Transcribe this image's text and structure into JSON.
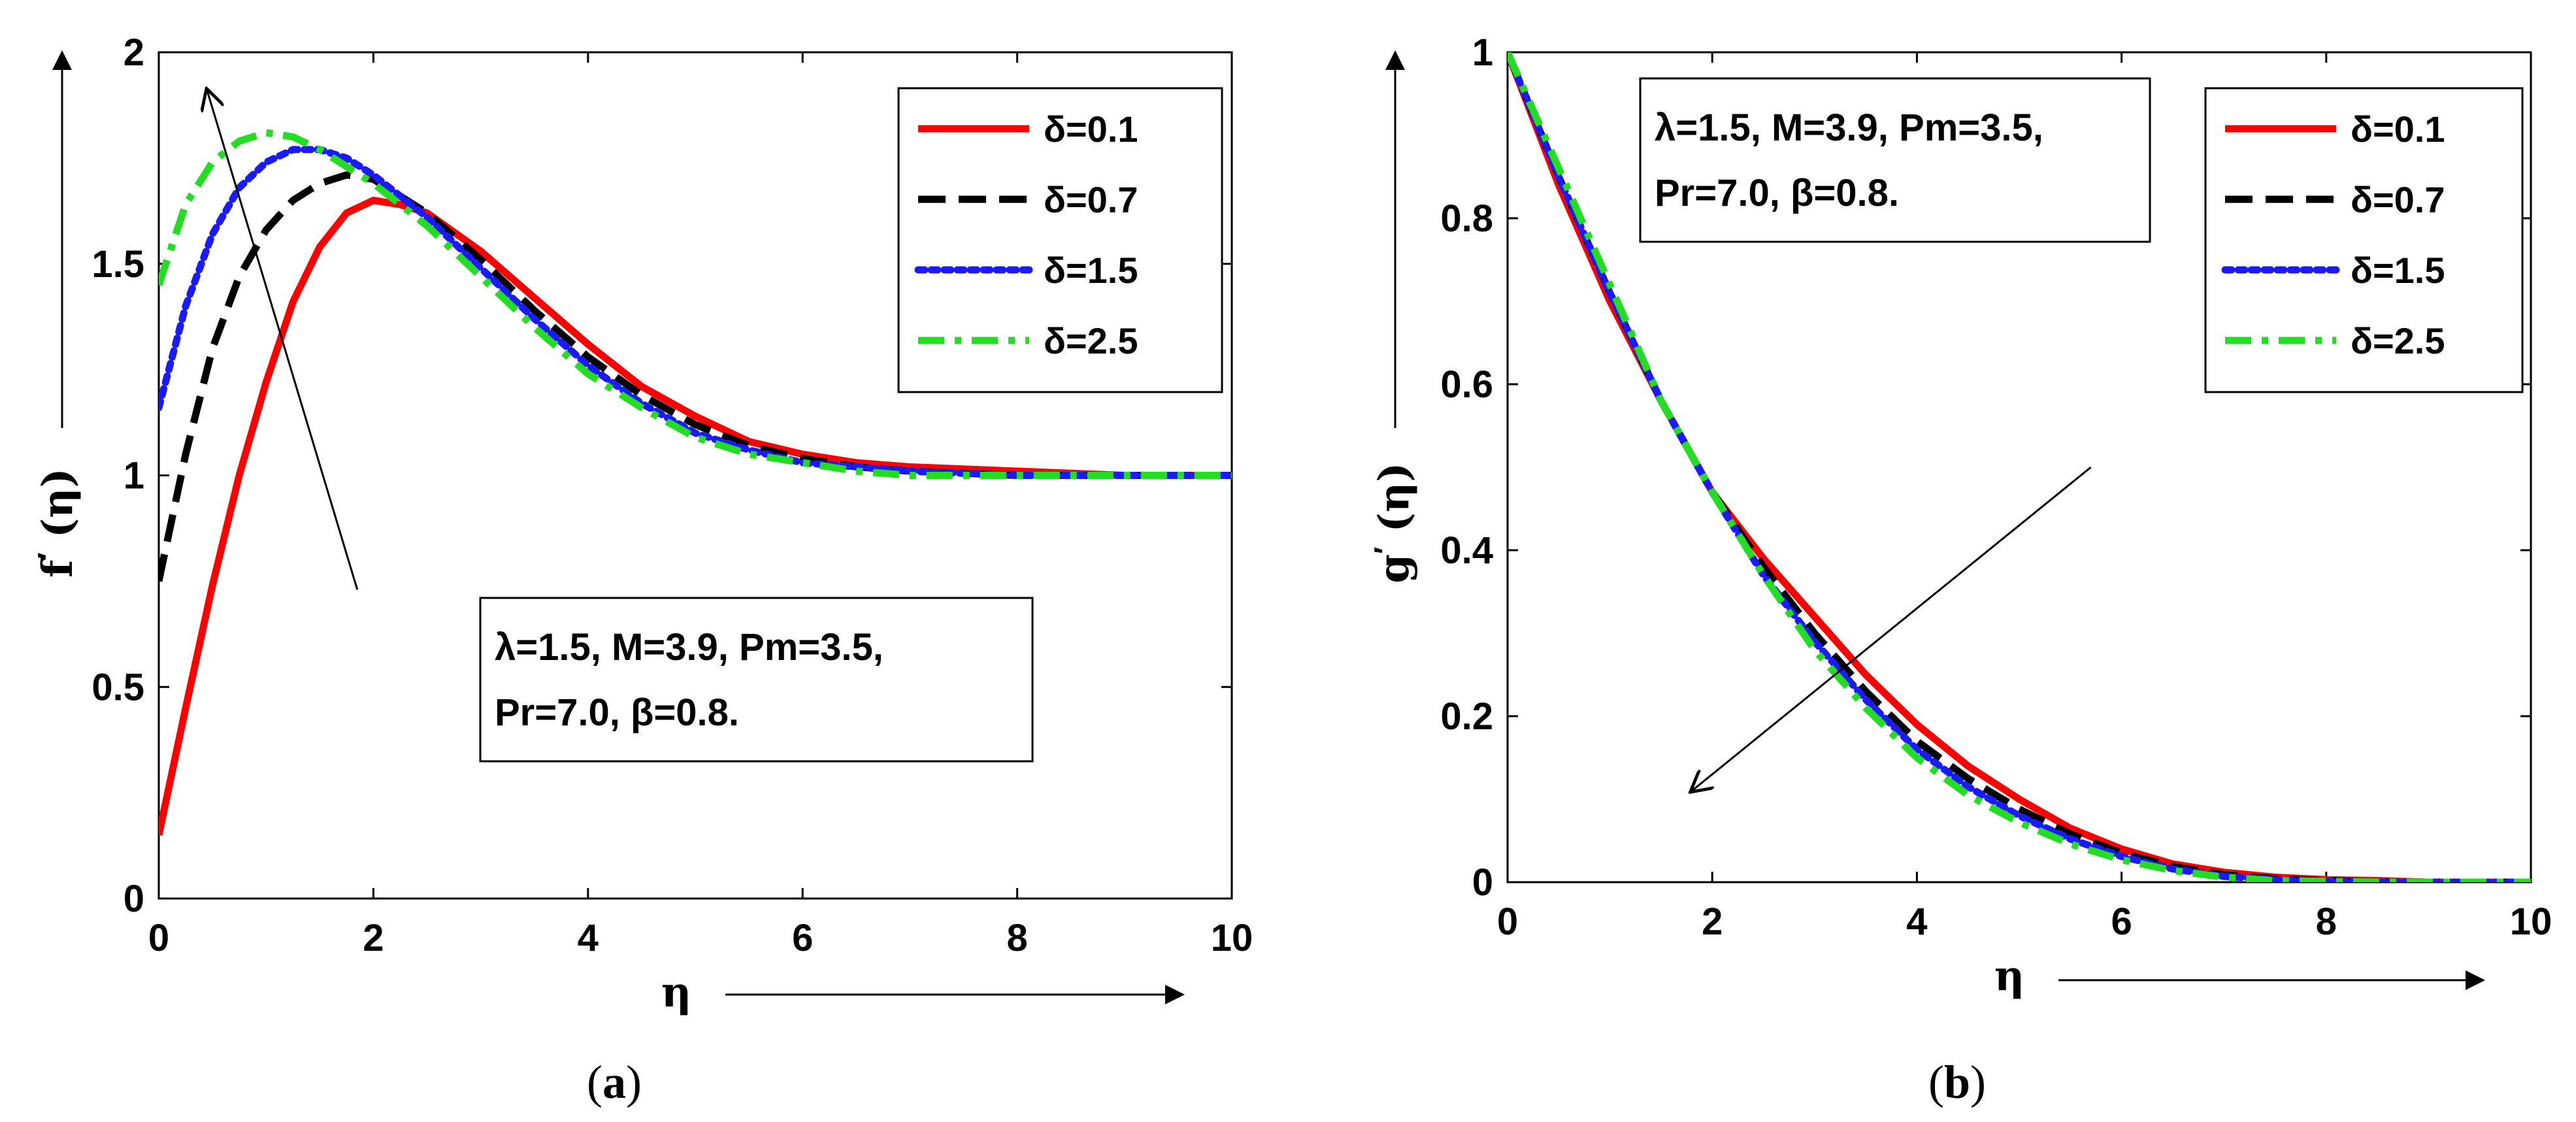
{
  "chart_data": [
    {
      "type": "line",
      "panel_label": "a",
      "ylabel": "f",
      "ylabel_prime": "′",
      "ylabel_arg": "(η)",
      "xlabel": "η",
      "xlim": [
        0,
        10
      ],
      "ylim": [
        0,
        2
      ],
      "xticks": [
        "0",
        "2",
        "4",
        "6",
        "8",
        "10"
      ],
      "yticks": [
        "0",
        "0.5",
        "1",
        "1.5",
        "2"
      ],
      "annotation": [
        "λ=1.5, M=3.9, Pm=3.5,",
        "Pr=7.0, β=0.8."
      ],
      "legend_position": "top-right",
      "trend_arrow": {
        "from": [
          1.85,
          0.73
        ],
        "to": [
          0.45,
          1.91
        ]
      },
      "series": [
        {
          "name": "δ=0.1",
          "color": "#ff0000",
          "dash": "solid",
          "x": [
            0,
            0.25,
            0.5,
            0.75,
            1,
            1.25,
            1.5,
            1.75,
            2,
            2.25,
            2.5,
            3,
            3.5,
            4,
            4.5,
            5,
            5.5,
            6,
            6.5,
            7,
            8,
            9,
            10
          ],
          "y": [
            0.15,
            0.45,
            0.74,
            1.0,
            1.22,
            1.41,
            1.54,
            1.62,
            1.65,
            1.64,
            1.62,
            1.53,
            1.42,
            1.31,
            1.21,
            1.14,
            1.08,
            1.05,
            1.03,
            1.02,
            1.01,
            1.0,
            1.0
          ]
        },
        {
          "name": "δ=0.7",
          "color": "#000000",
          "dash": "dashed",
          "x": [
            0,
            0.25,
            0.5,
            0.75,
            1,
            1.25,
            1.5,
            1.75,
            2,
            2.25,
            2.5,
            3,
            3.5,
            4,
            4.5,
            5,
            5.5,
            6,
            6.5,
            7,
            8,
            9,
            10
          ],
          "y": [
            0.75,
            1.05,
            1.3,
            1.47,
            1.58,
            1.65,
            1.69,
            1.71,
            1.7,
            1.66,
            1.62,
            1.51,
            1.39,
            1.28,
            1.19,
            1.12,
            1.07,
            1.04,
            1.02,
            1.01,
            1.0,
            1.0,
            1.0
          ]
        },
        {
          "name": "δ=1.5",
          "color": "#1a1aff",
          "dash": "dotted",
          "x": [
            0,
            0.25,
            0.5,
            0.75,
            1,
            1.25,
            1.5,
            1.75,
            2,
            2.25,
            2.5,
            3,
            3.5,
            4,
            4.5,
            5,
            5.5,
            6,
            6.5,
            7,
            8,
            9,
            10
          ],
          "y": [
            1.16,
            1.4,
            1.57,
            1.68,
            1.74,
            1.77,
            1.77,
            1.75,
            1.71,
            1.66,
            1.61,
            1.49,
            1.37,
            1.26,
            1.17,
            1.1,
            1.06,
            1.03,
            1.02,
            1.01,
            1.0,
            1.0,
            1.0
          ]
        },
        {
          "name": "δ=2.5",
          "color": "#22dd22",
          "dash": "dashdot",
          "x": [
            0,
            0.25,
            0.5,
            0.75,
            1,
            1.25,
            1.5,
            1.75,
            2,
            2.25,
            2.5,
            3,
            3.5,
            4,
            4.5,
            5,
            5.5,
            6,
            6.5,
            7,
            8,
            9,
            10
          ],
          "y": [
            1.45,
            1.64,
            1.74,
            1.79,
            1.81,
            1.8,
            1.77,
            1.73,
            1.69,
            1.64,
            1.59,
            1.47,
            1.35,
            1.24,
            1.16,
            1.09,
            1.05,
            1.03,
            1.01,
            1.0,
            1.0,
            1.0,
            1.0
          ]
        }
      ]
    },
    {
      "type": "line",
      "panel_label": "b",
      "ylabel": "g",
      "ylabel_prime": "′",
      "ylabel_arg": "(η)",
      "xlabel": "η",
      "xlim": [
        0,
        10
      ],
      "ylim": [
        0,
        1
      ],
      "xticks": [
        "0",
        "2",
        "4",
        "6",
        "8",
        "10"
      ],
      "yticks": [
        "0",
        "0.2",
        "0.4",
        "0.6",
        "0.8",
        "1"
      ],
      "annotation": [
        "λ=1.5, M=3.9, Pm=3.5,",
        "Pr=7.0, β=0.8."
      ],
      "legend_position": "top-right",
      "trend_arrow": {
        "from": [
          5.7,
          0.5
        ],
        "to": [
          1.8,
          0.11
        ]
      },
      "series": [
        {
          "name": "δ=0.1",
          "color": "#ff0000",
          "dash": "solid",
          "x": [
            0,
            0.5,
            1,
            1.5,
            2,
            2.5,
            3,
            3.5,
            4,
            4.5,
            5,
            5.5,
            6,
            6.5,
            7,
            7.5,
            8,
            8.5,
            9,
            10
          ],
          "y": [
            1.0,
            0.84,
            0.7,
            0.58,
            0.47,
            0.39,
            0.32,
            0.25,
            0.19,
            0.14,
            0.1,
            0.065,
            0.04,
            0.022,
            0.012,
            0.006,
            0.003,
            0.002,
            0.0,
            0.0
          ]
        },
        {
          "name": "δ=0.7",
          "color": "#000000",
          "dash": "dashed",
          "x": [
            0,
            0.5,
            1,
            1.5,
            2,
            2.5,
            3,
            3.5,
            4,
            4.5,
            5,
            5.5,
            6,
            6.5,
            7,
            7.5,
            8,
            8.5,
            9,
            10
          ],
          "y": [
            1.0,
            0.85,
            0.71,
            0.58,
            0.47,
            0.38,
            0.3,
            0.23,
            0.17,
            0.125,
            0.088,
            0.058,
            0.035,
            0.019,
            0.009,
            0.004,
            0.002,
            0.0,
            0.0,
            0.0
          ]
        },
        {
          "name": "δ=1.5",
          "color": "#1a1aff",
          "dash": "dotted",
          "x": [
            0,
            0.5,
            1,
            1.5,
            2,
            2.5,
            3,
            3.5,
            4,
            4.5,
            5,
            5.5,
            6,
            6.5,
            7,
            7.5,
            8,
            8.5,
            9,
            10
          ],
          "y": [
            1.0,
            0.85,
            0.71,
            0.58,
            0.47,
            0.37,
            0.29,
            0.22,
            0.16,
            0.115,
            0.08,
            0.052,
            0.031,
            0.016,
            0.007,
            0.003,
            0.001,
            0.0,
            0.0,
            0.0
          ]
        },
        {
          "name": "δ=2.5",
          "color": "#22dd22",
          "dash": "dashdot",
          "x": [
            0,
            0.5,
            1,
            1.5,
            2,
            2.5,
            3,
            3.5,
            4,
            4.5,
            5,
            5.5,
            6,
            6.5,
            7,
            7.5,
            8,
            8.5,
            9,
            10
          ],
          "y": [
            1.0,
            0.86,
            0.72,
            0.58,
            0.47,
            0.37,
            0.28,
            0.21,
            0.15,
            0.105,
            0.072,
            0.046,
            0.027,
            0.014,
            0.006,
            0.002,
            0.001,
            0.0,
            0.0,
            0.0
          ]
        }
      ]
    }
  ]
}
